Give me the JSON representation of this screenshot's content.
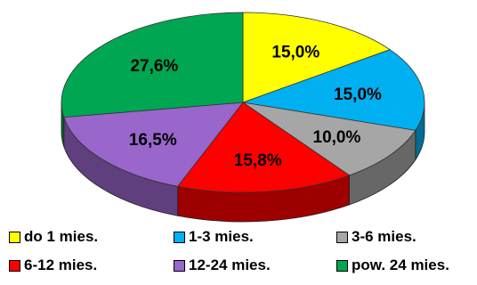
{
  "chart_data": {
    "type": "pie",
    "style": "3d",
    "categories": [
      "do 1 mies.",
      "1-3 mies.",
      "3-6 mies.",
      "6-12 mies.",
      "12-24 mies.",
      "pow. 24 mies."
    ],
    "values": [
      15.0,
      15.0,
      10.0,
      15.8,
      16.5,
      27.6
    ],
    "value_labels": [
      "15,0%",
      "15,0%",
      "10,0%",
      "15,8%",
      "16,5%",
      "27,6%"
    ],
    "colors": [
      "#ffff00",
      "#00b0f0",
      "#a6a6a6",
      "#ff0000",
      "#9966cc",
      "#00a651"
    ],
    "legend_position": "bottom",
    "title": ""
  },
  "legend": {
    "items": [
      {
        "label": "do 1 mies.",
        "color": "#ffff00"
      },
      {
        "label": "1-3 mies.",
        "color": "#00b0f0"
      },
      {
        "label": "3-6 mies.",
        "color": "#a6a6a6"
      },
      {
        "label": "6-12 mies.",
        "color": "#ff0000"
      },
      {
        "label": "12-24 mies.",
        "color": "#9966cc"
      },
      {
        "label": "pow. 24 mies.",
        "color": "#00a651"
      }
    ]
  }
}
